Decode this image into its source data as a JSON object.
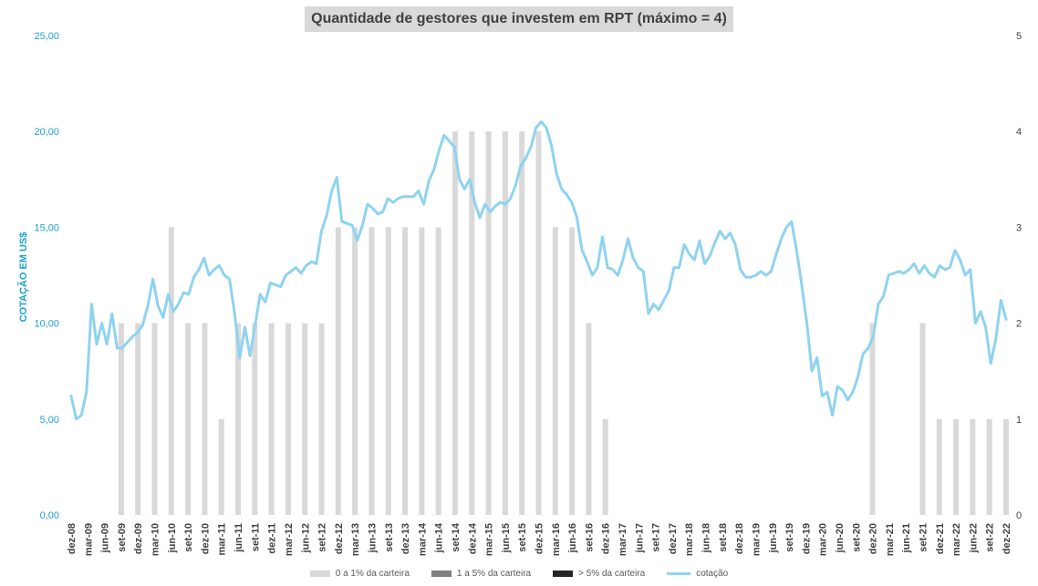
{
  "chart_data": {
    "type": "bar",
    "title": "Quantidade de gestores que investem em RPT (máximo = 4)",
    "ylabel": "COTAÇÃO EM US$",
    "ylim": [
      0,
      25
    ],
    "y_ticks": [
      "0,00",
      "5,00",
      "10,00",
      "15,00",
      "20,00",
      "25,00"
    ],
    "y2lim": [
      0,
      5
    ],
    "y2_ticks": [
      "0",
      "1",
      "2",
      "3",
      "4",
      "5"
    ],
    "x_ticks": [
      "dez-08",
      "mar-09",
      "jun-09",
      "set-09",
      "dez-09",
      "mar-10",
      "jun-10",
      "set-10",
      "dez-10",
      "mar-11",
      "jun-11",
      "set-11",
      "dez-11",
      "mar-12",
      "jun-12",
      "set-12",
      "dez-12",
      "mar-13",
      "jun-13",
      "set-13",
      "dez-13",
      "mar-14",
      "jun-14",
      "set-14",
      "dez-14",
      "mar-15",
      "jun-15",
      "set-15",
      "dez-15",
      "mar-16",
      "jun-16",
      "set-16",
      "dez-16",
      "mar-17",
      "jun-17",
      "set-17",
      "dez-17",
      "mar-18",
      "jun-18",
      "set-18",
      "dez-18",
      "mar-19",
      "jun-19",
      "set-19",
      "dez-19",
      "mar-20",
      "jun-20",
      "set-20",
      "dez-20",
      "mar-21",
      "jun-21",
      "set-21",
      "dez-21",
      "mar-22",
      "jun-22",
      "set-22",
      "dez-22"
    ],
    "bar_series": [
      {
        "name": "0 a 1% da carteira",
        "color": "#d9d9d9",
        "values": [
          0,
          0,
          0,
          2,
          2,
          2,
          3,
          2,
          2,
          1,
          2,
          2,
          2,
          2,
          2,
          2,
          3,
          3,
          3,
          3,
          3,
          3,
          3,
          4,
          4,
          4,
          4,
          4,
          4,
          3,
          3,
          2,
          1,
          0,
          0,
          0,
          0,
          0,
          0,
          0,
          0,
          0,
          0,
          0,
          0,
          0,
          0,
          0,
          2,
          0,
          0,
          2,
          1,
          1,
          1,
          1,
          1
        ]
      },
      {
        "name": "1 a 5% da carteira",
        "color": "#808080",
        "values": [
          0,
          0,
          0,
          0,
          0,
          0,
          0,
          0,
          0,
          0,
          0,
          0,
          0,
          0,
          0,
          0,
          0,
          0,
          0,
          0,
          0,
          0,
          0,
          0,
          0,
          0,
          0,
          0,
          0,
          0,
          0,
          0,
          0,
          0,
          0,
          0,
          0,
          0,
          0,
          0,
          0,
          0,
          0,
          0,
          0,
          0,
          0,
          0,
          0,
          0,
          0,
          0,
          0,
          0,
          0,
          0,
          0
        ]
      },
      {
        "name": "> 5% da carteira",
        "color": "#262626",
        "values": [
          0,
          0,
          0,
          0,
          0,
          0,
          0,
          0,
          0,
          0,
          0,
          0,
          0,
          0,
          0,
          0,
          0,
          0,
          0,
          0,
          0,
          0,
          0,
          0,
          0,
          0,
          0,
          0,
          0,
          0,
          0,
          0,
          0,
          0,
          0,
          0,
          0,
          0,
          0,
          0,
          0,
          0,
          0,
          0,
          0,
          0,
          0,
          0,
          0,
          0,
          0,
          0,
          0,
          0,
          0,
          0,
          0
        ]
      }
    ],
    "line_series": {
      "name": "cotação",
      "color": "#8fd3f0",
      "axis": "left",
      "values": [
        6.2,
        5.0,
        5.2,
        6.4,
        11.0,
        8.9,
        10.0,
        8.9,
        10.5,
        8.7,
        8.7,
        9.0,
        9.3,
        9.5,
        9.9,
        10.9,
        12.3,
        10.9,
        10.3,
        11.5,
        10.6,
        11.0,
        11.6,
        11.5,
        12.4,
        12.8,
        13.4,
        12.5,
        12.8,
        13.0,
        12.5,
        12.3,
        10.5,
        8.2,
        9.8,
        8.3,
        9.9,
        11.5,
        11.1,
        12.1,
        12.0,
        11.9,
        12.5,
        12.7,
        12.9,
        12.6,
        13.0,
        13.2,
        13.1,
        14.8,
        15.6,
        16.9,
        17.6,
        15.3,
        15.2,
        15.1,
        14.3,
        15.1,
        16.2,
        16.0,
        15.7,
        15.8,
        16.5,
        16.3,
        16.5,
        16.6,
        16.6,
        16.6,
        16.9,
        16.2,
        17.4,
        18.0,
        19.0,
        19.8,
        19.5,
        19.2,
        17.5,
        17.0,
        17.5,
        16.3,
        15.5,
        16.2,
        15.8,
        16.1,
        16.3,
        16.2,
        16.5,
        17.2,
        18.2,
        18.6,
        19.2,
        20.2,
        20.5,
        20.2,
        19.3,
        17.8,
        17.0,
        16.7,
        16.3,
        15.5,
        13.8,
        13.2,
        12.5,
        12.9,
        14.5,
        12.9,
        12.8,
        12.5,
        13.3,
        14.4,
        13.4,
        12.9,
        12.7,
        10.5,
        11.0,
        10.7,
        11.2,
        11.7,
        12.9,
        12.9,
        14.1,
        13.6,
        13.3,
        14.3,
        13.1,
        13.5,
        14.2,
        14.8,
        14.4,
        14.7,
        14.1,
        12.8,
        12.4,
        12.4,
        12.5,
        12.7,
        12.5,
        12.7,
        13.6,
        14.4,
        15.0,
        15.3,
        13.8,
        12.0,
        10.0,
        7.5,
        8.2,
        6.2,
        6.4,
        5.2,
        6.7,
        6.5,
        6.0,
        6.4,
        7.2,
        8.4,
        8.7,
        9.3,
        11.0,
        11.4,
        12.5,
        12.6,
        12.7,
        12.6,
        12.8,
        13.1,
        12.6,
        13.0,
        12.6,
        12.4,
        13.0,
        12.8,
        12.9,
        13.8,
        13.3,
        12.5,
        12.8,
        10.0,
        10.6,
        9.8,
        7.9,
        9.2,
        11.2,
        10.2
      ]
    }
  },
  "legend": {
    "item1": "0 a 1% da carteira",
    "item2": "1 a 5% da carteira",
    "item3": "> 5% da carteira",
    "item4": "cotação"
  }
}
